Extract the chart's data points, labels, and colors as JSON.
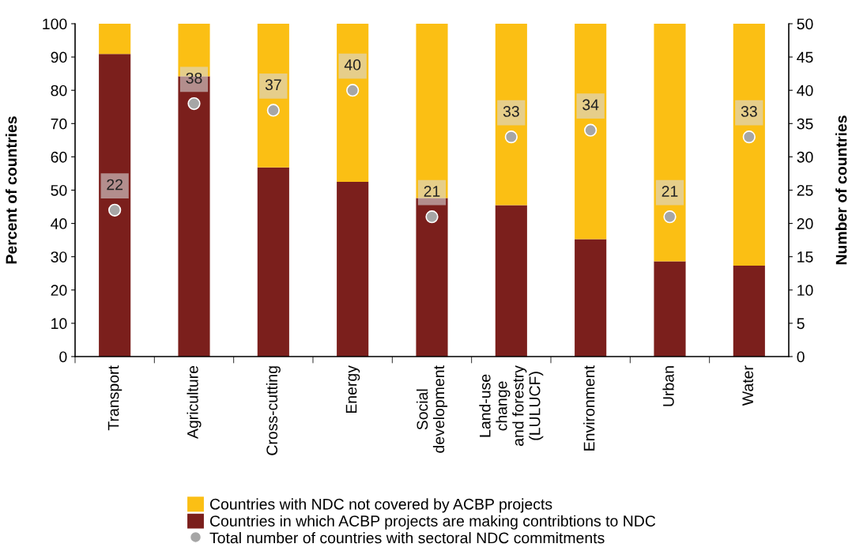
{
  "chart_data": {
    "type": "bar",
    "stacked": true,
    "ylabel": "Percent of countries",
    "y2label": "Number of countries",
    "categories": [
      "Transport",
      "Agriculture",
      "Cross-cutting",
      "Energy",
      "Social\ndevelopment",
      "Land-use\nchange\nand forestry\n(LULUCF)",
      "Environment",
      "Urban",
      "Water"
    ],
    "series": [
      {
        "name": "Countries in which ACBP projects are making contribtions to NDC",
        "color": "#7b1f1c",
        "values": [
          90.9,
          84.2,
          56.8,
          52.5,
          47.6,
          45.5,
          35.3,
          28.6,
          27.3
        ]
      },
      {
        "name": "Countries with NDC not covered by ACBP projects",
        "color": "#fbbf14",
        "values": [
          9.1,
          15.8,
          43.2,
          47.5,
          52.4,
          54.5,
          64.7,
          71.4,
          72.7
        ]
      },
      {
        "name": "Total number of countries with sectoral NDC commitments",
        "type": "scatter",
        "axis": "y2",
        "color": "#a6a6a6",
        "marker": "circle",
        "values": [
          22,
          38,
          37,
          40,
          21,
          33,
          34,
          21,
          33
        ],
        "value_labels": [
          "22",
          "38",
          "37",
          "40",
          "21",
          "33",
          "34",
          "21",
          "33"
        ]
      }
    ],
    "ylim": [
      0,
      100
    ],
    "yticks": [
      0,
      10,
      20,
      30,
      40,
      50,
      60,
      70,
      80,
      90,
      100
    ],
    "y2lim": [
      0,
      50
    ],
    "y2ticks": [
      0,
      5,
      10,
      15,
      20,
      25,
      30,
      35,
      40,
      45,
      50
    ],
    "grid": false,
    "legend": "bottom"
  }
}
